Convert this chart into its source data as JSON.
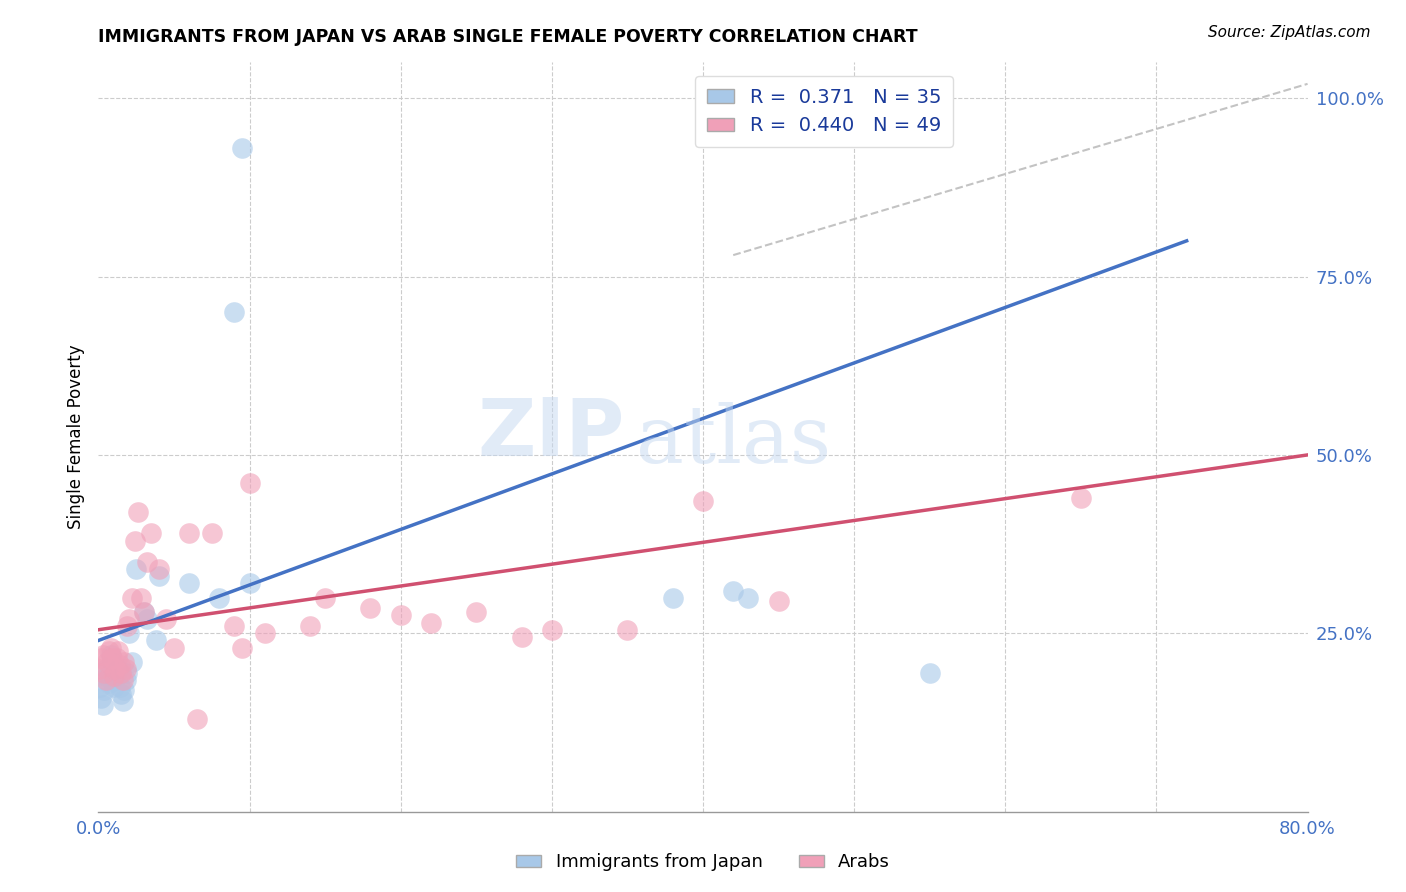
{
  "title": "IMMIGRANTS FROM JAPAN VS ARAB SINGLE FEMALE POVERTY CORRELATION CHART",
  "source": "Source: ZipAtlas.com",
  "ylabel": "Single Female Poverty",
  "xlim": [
    0.0,
    0.8
  ],
  "ylim": [
    0.0,
    1.05
  ],
  "color_japan": "#a8c8e8",
  "color_arab": "#f0a0b8",
  "line_color_japan": "#4472c4",
  "line_color_arab": "#d05070",
  "watermark_zip": "ZIP",
  "watermark_atlas": "atlas",
  "japan_line_x": [
    0.0,
    0.72
  ],
  "japan_line_y": [
    0.24,
    0.8
  ],
  "arab_line_x": [
    0.0,
    0.8
  ],
  "arab_line_y": [
    0.255,
    0.5
  ],
  "dash_line_x": [
    0.42,
    0.8
  ],
  "dash_line_y": [
    0.78,
    1.02
  ],
  "japan_points_x": [
    0.001,
    0.002,
    0.003,
    0.004,
    0.005,
    0.006,
    0.007,
    0.008,
    0.009,
    0.01,
    0.011,
    0.012,
    0.013,
    0.014,
    0.015,
    0.016,
    0.017,
    0.018,
    0.019,
    0.02,
    0.022,
    0.025,
    0.03,
    0.032,
    0.038,
    0.04,
    0.06,
    0.08,
    0.09,
    0.095,
    0.1,
    0.38,
    0.42,
    0.43,
    0.55
  ],
  "japan_points_y": [
    0.175,
    0.16,
    0.15,
    0.17,
    0.2,
    0.19,
    0.18,
    0.22,
    0.21,
    0.175,
    0.185,
    0.195,
    0.2,
    0.175,
    0.165,
    0.155,
    0.17,
    0.185,
    0.195,
    0.25,
    0.21,
    0.34,
    0.28,
    0.27,
    0.24,
    0.33,
    0.32,
    0.3,
    0.7,
    0.93,
    0.32,
    0.3,
    0.31,
    0.3,
    0.195
  ],
  "arab_points_x": [
    0.001,
    0.002,
    0.003,
    0.004,
    0.005,
    0.006,
    0.007,
    0.008,
    0.009,
    0.01,
    0.011,
    0.012,
    0.013,
    0.014,
    0.015,
    0.016,
    0.017,
    0.018,
    0.019,
    0.02,
    0.022,
    0.024,
    0.026,
    0.028,
    0.03,
    0.032,
    0.035,
    0.04,
    0.045,
    0.05,
    0.06,
    0.065,
    0.075,
    0.09,
    0.095,
    0.1,
    0.11,
    0.14,
    0.15,
    0.18,
    0.2,
    0.22,
    0.25,
    0.28,
    0.3,
    0.35,
    0.4,
    0.45,
    0.65
  ],
  "arab_points_y": [
    0.2,
    0.215,
    0.22,
    0.195,
    0.185,
    0.21,
    0.225,
    0.23,
    0.215,
    0.19,
    0.2,
    0.215,
    0.225,
    0.205,
    0.195,
    0.185,
    0.21,
    0.2,
    0.26,
    0.27,
    0.3,
    0.38,
    0.42,
    0.3,
    0.28,
    0.35,
    0.39,
    0.34,
    0.27,
    0.23,
    0.39,
    0.13,
    0.39,
    0.26,
    0.23,
    0.46,
    0.25,
    0.26,
    0.3,
    0.285,
    0.275,
    0.265,
    0.28,
    0.245,
    0.255,
    0.255,
    0.435,
    0.295,
    0.44
  ]
}
